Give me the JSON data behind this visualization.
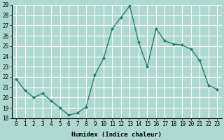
{
  "x": [
    0,
    1,
    2,
    3,
    4,
    5,
    6,
    7,
    8,
    9,
    10,
    11,
    12,
    13,
    14,
    15,
    16,
    17,
    18,
    19,
    20,
    21,
    22,
    23
  ],
  "y": [
    21.8,
    20.7,
    20.0,
    20.4,
    19.7,
    19.0,
    18.3,
    18.5,
    19.1,
    22.2,
    23.8,
    26.7,
    27.8,
    28.9,
    25.4,
    23.0,
    26.7,
    25.5,
    25.2,
    25.1,
    24.7,
    23.6,
    21.2,
    20.8
  ],
  "line_color": "#2d7a6b",
  "marker": "D",
  "marker_size": 2.0,
  "bg_color": "#aed9d0",
  "grid_color": "#ffffff",
  "xlabel": "Humidex (Indice chaleur)",
  "ylim": [
    18,
    29
  ],
  "xlim_min": -0.5,
  "xlim_max": 23.5,
  "yticks": [
    18,
    19,
    20,
    21,
    22,
    23,
    24,
    25,
    26,
    27,
    28,
    29
  ],
  "xticks": [
    0,
    1,
    2,
    3,
    4,
    5,
    6,
    7,
    8,
    9,
    10,
    11,
    12,
    13,
    14,
    15,
    16,
    17,
    18,
    19,
    20,
    21,
    22,
    23
  ],
  "xtick_labels": [
    "0",
    "1",
    "2",
    "3",
    "4",
    "5",
    "6",
    "7",
    "8",
    "9",
    "10",
    "11",
    "12",
    "13",
    "14",
    "15",
    "16",
    "17",
    "18",
    "19",
    "20",
    "21",
    "22",
    "23"
  ],
  "tick_fontsize": 5.5,
  "xlabel_fontsize": 6.5,
  "line_width": 1.0
}
